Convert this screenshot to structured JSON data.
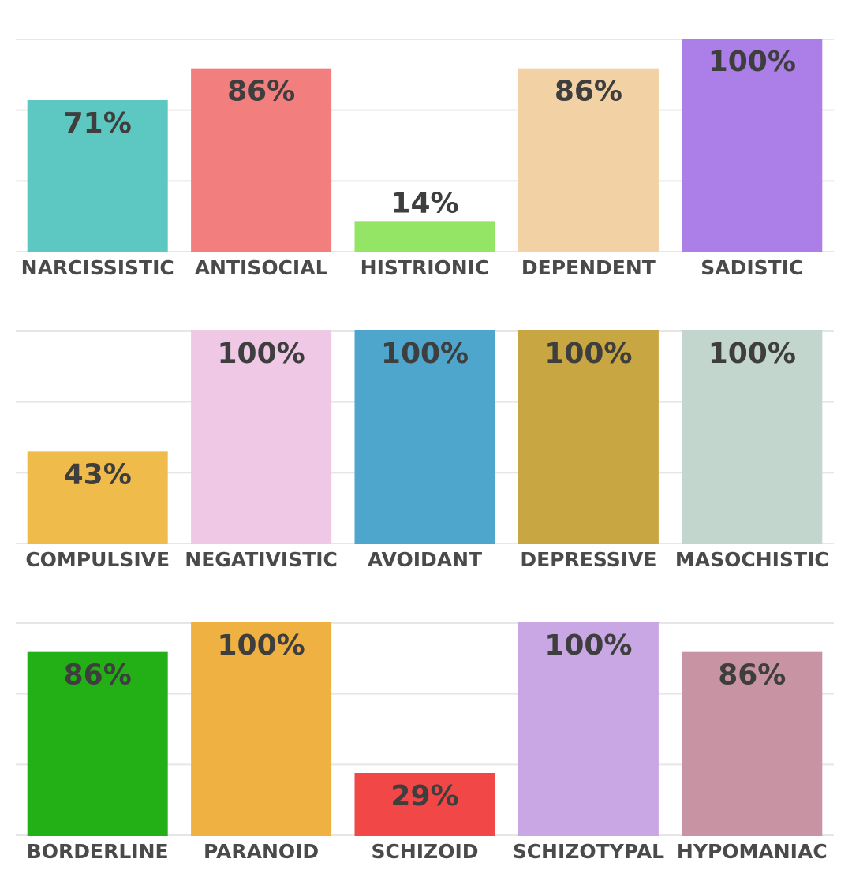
{
  "chart_data": [
    {
      "type": "bar",
      "categories": [
        "NARCISSISTIC",
        "ANTISOCIAL",
        "HISTRIONIC",
        "DEPENDENT",
        "SADISTIC"
      ],
      "values": [
        71,
        86,
        14,
        86,
        100
      ],
      "value_labels": [
        "71%",
        "86%",
        "14%",
        "86%",
        "100%"
      ],
      "colors": [
        "#62d2cc",
        "#ff8585",
        "#9cf06a",
        "#ffdcae",
        "#b585f3"
      ],
      "ylim": [
        0,
        100
      ],
      "yticks": [
        0,
        33.3,
        66.7,
        100
      ],
      "grid": true
    },
    {
      "type": "bar",
      "categories": [
        "COMPULSIVE",
        "NEGATIVISTIC",
        "AVOIDANT",
        "DEPRESSIVE",
        "MASOCHISTIC"
      ],
      "values": [
        43,
        100,
        100,
        100,
        100
      ],
      "value_labels": [
        "43%",
        "100%",
        "100%",
        "100%",
        "100%"
      ],
      "colors": [
        "#fcc54e",
        "#fcd2f1",
        "#52afd8",
        "#d3af45",
        "#cde1d9"
      ],
      "ylim": [
        0,
        100
      ],
      "yticks": [
        0,
        33.3,
        66.7,
        100
      ],
      "grid": true
    },
    {
      "type": "bar",
      "categories": [
        "BORDERLINE",
        "PARANOID",
        "SCHIZOID",
        "SCHIZOTYPAL",
        "HYPOMANIAC"
      ],
      "values": [
        86,
        100,
        29,
        100,
        86
      ],
      "value_labels": [
        "86%",
        "100%",
        "29%",
        "100%",
        "86%"
      ],
      "colors": [
        "#25b917",
        "#fcbb46",
        "#ff4b4b",
        "#d3b0f0",
        "#d39cad"
      ],
      "ylim": [
        0,
        100
      ],
      "yticks": [
        0,
        33.3,
        66.7,
        100
      ],
      "grid": true
    }
  ]
}
